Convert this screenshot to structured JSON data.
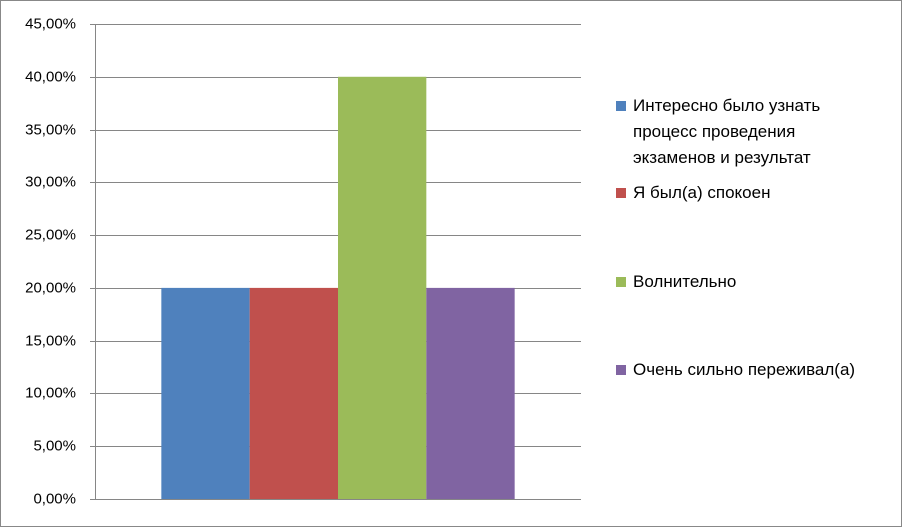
{
  "chart_data": {
    "type": "bar",
    "categories": [
      null
    ],
    "series": [
      {
        "name": "Интересно было узнать процесс проведения экзаменов и результат",
        "color": "#4f81bd",
        "values": [
          20
        ]
      },
      {
        "name": "Я был(а) спокоен",
        "color": "#c0504d",
        "values": [
          20
        ]
      },
      {
        "name": "Волнительно",
        "color": "#9bbb59",
        "values": [
          40
        ]
      },
      {
        "name": "Очень сильно переживал(а)",
        "color": "#8064a2",
        "values": [
          20
        ]
      }
    ],
    "ylim": [
      0,
      45
    ],
    "yticks": [
      {
        "value": 0,
        "label": "0,00%"
      },
      {
        "value": 5,
        "label": "5,00%"
      },
      {
        "value": 10,
        "label": "10,00%"
      },
      {
        "value": 15,
        "label": "15,00%"
      },
      {
        "value": 20,
        "label": "20,00%"
      },
      {
        "value": 25,
        "label": "25,00%"
      },
      {
        "value": 30,
        "label": "30,00%"
      },
      {
        "value": 35,
        "label": "35,00%"
      },
      {
        "value": 40,
        "label": "40,00%"
      },
      {
        "value": 45,
        "label": "45,00%"
      }
    ],
    "grid": true,
    "legend": "right"
  }
}
